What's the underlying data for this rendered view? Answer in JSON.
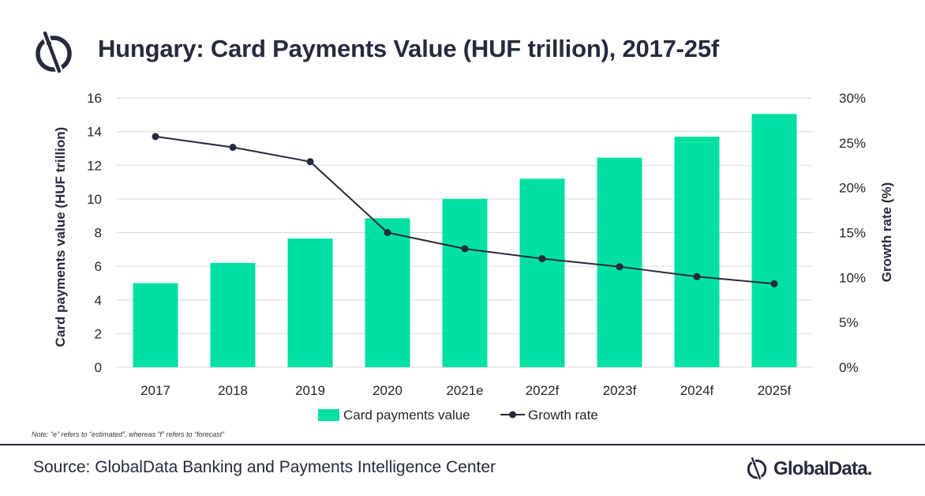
{
  "title": "Hungary: Card Payments Value (HUF trillion), 2017-25f",
  "note": "Note: “e” refers to “estimated”, whereas “f” refers to “forecast”",
  "source": "Source: GlobalData Banking and Payments Intelligence Center",
  "brand": {
    "name": "GlobalData.",
    "icon": "globaldata-logo-icon"
  },
  "colors": {
    "bar": "#00e0a2",
    "line": "#262a3d",
    "grid": "#d9d9d9",
    "text": "#262626"
  },
  "chart_data": {
    "type": "bar",
    "title": "Hungary: Card Payments Value (HUF trillion), 2017-25f",
    "categories": [
      "2017",
      "2018",
      "2019",
      "2020",
      "2021e",
      "2022f",
      "2023f",
      "2024f",
      "2025f"
    ],
    "series": [
      {
        "name": "Card payments value",
        "type": "bar",
        "axis": "left",
        "values": [
          5.0,
          6.2,
          7.65,
          8.85,
          10.0,
          11.2,
          12.45,
          13.7,
          15.05
        ]
      },
      {
        "name": "Growth rate",
        "type": "line",
        "axis": "right",
        "values": [
          25.7,
          24.5,
          22.9,
          15.0,
          13.2,
          12.1,
          11.2,
          10.1,
          9.3
        ]
      }
    ],
    "ylabel": "Card payments value (HUF trillion)",
    "ylim": [
      0,
      16
    ],
    "yticks": [
      "0",
      "2",
      "4",
      "6",
      "8",
      "10",
      "12",
      "14",
      "16"
    ],
    "y2label": "Growth rate (%)",
    "y2lim": [
      0,
      30
    ],
    "y2ticks": [
      "0%",
      "5%",
      "10%",
      "15%",
      "20%",
      "25%",
      "30%"
    ],
    "grid": true,
    "legend": "bottom"
  }
}
